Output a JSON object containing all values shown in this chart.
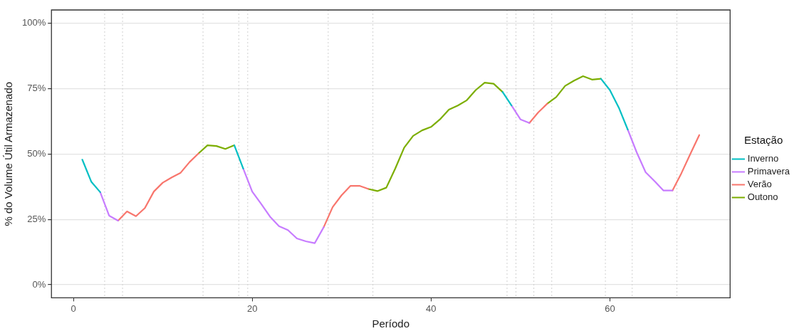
{
  "chart_data": {
    "type": "line",
    "xlabel": "Período",
    "ylabel": "% do Volume Útil Armazenado",
    "legend_title": "Estação",
    "x": [
      1,
      2,
      3,
      4,
      5,
      6,
      7,
      8,
      9,
      10,
      11,
      12,
      13,
      14,
      15,
      16,
      17,
      18,
      19,
      20,
      21,
      22,
      23,
      24,
      25,
      26,
      27,
      28,
      29,
      30,
      31,
      32,
      33,
      34,
      35,
      36,
      37,
      38,
      39,
      40,
      41,
      42,
      43,
      44,
      45,
      46,
      47,
      48,
      49,
      50,
      51,
      52,
      53,
      54,
      55,
      56,
      57,
      58,
      59,
      60,
      61,
      62,
      63,
      64,
      65,
      66,
      67,
      68,
      69,
      70
    ],
    "series": [
      {
        "name": "Inverno",
        "color": "#00bfc4",
        "values": [
          47.8,
          39.4,
          35.4,
          null,
          null,
          null,
          null,
          null,
          null,
          null,
          null,
          null,
          null,
          null,
          null,
          null,
          null,
          53.3,
          44.4,
          null,
          null,
          null,
          null,
          null,
          null,
          null,
          null,
          null,
          null,
          null,
          null,
          null,
          null,
          null,
          null,
          null,
          null,
          null,
          null,
          null,
          null,
          null,
          null,
          null,
          null,
          null,
          null,
          73.7,
          68.5,
          null,
          null,
          null,
          null,
          null,
          null,
          null,
          null,
          null,
          78.7,
          74.4,
          67.7,
          59.3,
          null,
          null,
          null,
          null,
          null,
          null,
          null,
          null
        ]
      },
      {
        "name": "Primavera",
        "color": "#c77cff",
        "values": [
          null,
          null,
          35.4,
          26.4,
          24.5,
          null,
          null,
          null,
          null,
          null,
          null,
          null,
          null,
          null,
          null,
          null,
          null,
          null,
          44.4,
          35.6,
          30.9,
          26.0,
          22.4,
          20.9,
          17.7,
          16.6,
          15.9,
          22.0,
          null,
          null,
          null,
          null,
          null,
          null,
          null,
          null,
          null,
          null,
          null,
          null,
          null,
          null,
          null,
          null,
          null,
          null,
          null,
          null,
          68.5,
          63.2,
          61.8,
          null,
          null,
          null,
          null,
          null,
          null,
          null,
          null,
          null,
          null,
          59.3,
          50.6,
          43.0,
          39.6,
          36.0,
          36.0,
          null,
          null,
          null
        ]
      },
      {
        "name": "Verão",
        "color": "#f8766d",
        "values": [
          null,
          null,
          null,
          null,
          24.5,
          28.0,
          26.2,
          29.3,
          35.6,
          39.0,
          41.0,
          42.8,
          46.9,
          50.2,
          null,
          null,
          null,
          null,
          null,
          null,
          null,
          null,
          null,
          null,
          null,
          null,
          null,
          22.0,
          29.7,
          34.2,
          37.8,
          37.8,
          36.6,
          null,
          null,
          null,
          null,
          null,
          null,
          null,
          null,
          null,
          null,
          null,
          null,
          null,
          null,
          null,
          null,
          null,
          61.8,
          65.9,
          69.2,
          null,
          null,
          null,
          null,
          null,
          null,
          null,
          null,
          null,
          null,
          null,
          null,
          null,
          36.0,
          42.6,
          50.0,
          57.2
        ]
      },
      {
        "name": "Outono",
        "color": "#7cae00",
        "values": [
          null,
          null,
          null,
          null,
          null,
          null,
          null,
          null,
          null,
          null,
          null,
          null,
          null,
          50.2,
          53.3,
          53.0,
          51.9,
          53.3,
          null,
          null,
          null,
          null,
          null,
          null,
          null,
          null,
          null,
          null,
          null,
          null,
          null,
          null,
          36.6,
          35.8,
          37.1,
          44.4,
          52.4,
          56.9,
          59.0,
          60.3,
          63.2,
          66.9,
          68.5,
          70.5,
          74.4,
          77.2,
          76.8,
          73.7,
          null,
          null,
          null,
          null,
          69.2,
          71.7,
          76.0,
          78.0,
          79.7,
          78.4,
          78.7,
          null,
          null,
          null,
          null,
          null,
          null,
          null,
          null,
          null,
          null,
          null
        ]
      }
    ],
    "xlim": [
      -2.45,
      73.45
    ],
    "xticks": [
      0,
      20,
      40,
      60
    ],
    "ylim": [
      -5,
      105
    ],
    "yticks": [
      {
        "value": 0,
        "label": "0%"
      },
      {
        "value": 25,
        "label": "25%"
      },
      {
        "value": 50,
        "label": "50%"
      },
      {
        "value": 75,
        "label": "75%"
      },
      {
        "value": 100,
        "label": "100%"
      }
    ],
    "ref_lines": [
      {
        "axis": "x",
        "value": 3.5,
        "color": "#d0d0d0",
        "line_style": "dotted"
      },
      {
        "axis": "x",
        "value": 5.5,
        "color": "#d0d0d0",
        "line_style": "dotted"
      },
      {
        "axis": "x",
        "value": 14.5,
        "color": "#d0d0d0",
        "line_style": "dotted"
      },
      {
        "axis": "x",
        "value": 18.5,
        "color": "#d0d0d0",
        "line_style": "dotted"
      },
      {
        "axis": "x",
        "value": 19.5,
        "color": "#d0d0d0",
        "line_style": "dotted"
      },
      {
        "axis": "x",
        "value": 28.5,
        "color": "#d0d0d0",
        "line_style": "dotted"
      },
      {
        "axis": "x",
        "value": 33.5,
        "color": "#d0d0d0",
        "line_style": "dotted"
      },
      {
        "axis": "x",
        "value": 48.5,
        "color": "#d0d0d0",
        "line_style": "dotted"
      },
      {
        "axis": "x",
        "value": 49.5,
        "color": "#d0d0d0",
        "line_style": "dotted"
      },
      {
        "axis": "x",
        "value": 51.5,
        "color": "#d0d0d0",
        "line_style": "dotted"
      },
      {
        "axis": "x",
        "value": 53.5,
        "color": "#d0d0d0",
        "line_style": "dotted"
      },
      {
        "axis": "x",
        "value": 59.5,
        "color": "#d0d0d0",
        "line_style": "dotted"
      },
      {
        "axis": "x",
        "value": 62.5,
        "color": "#d0d0d0",
        "line_style": "dotted"
      },
      {
        "axis": "x",
        "value": 67.5,
        "color": "#d0d0d0",
        "line_style": "dotted"
      }
    ],
    "grid": "y",
    "legend": "right",
    "marker": "none",
    "line_style": "solid"
  }
}
